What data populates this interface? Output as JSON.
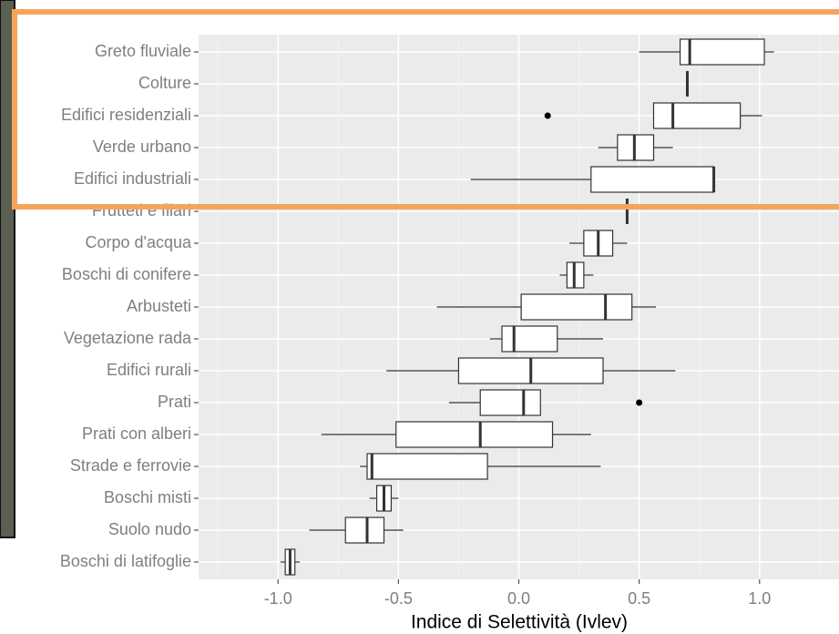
{
  "chart_data": {
    "type": "boxplot",
    "x_label": "Indice di Selettività (Ivlev)",
    "categories": [
      "Greto fluviale",
      "Colture",
      "Edifici residenziali",
      "Verde urbano",
      "Edifici industriali",
      "Frutteti e filari",
      "Corpo d'acqua",
      "Boschi di conifere",
      "Arbusteti",
      "Vegetazione rada",
      "Edifici rurali",
      "Prati",
      "Prati con alberi",
      "Strade e ferrovie",
      "Boschi misti",
      "Suolo nudo",
      "Boschi di latifoglie"
    ],
    "boxes": [
      {
        "low": 0.5,
        "q1": 0.67,
        "median": 0.71,
        "q3": 1.02,
        "high": 1.06
      },
      {
        "low": 0.7,
        "q1": 0.7,
        "median": 0.7,
        "q3": 0.7,
        "high": 0.7
      },
      {
        "low": 0.56,
        "q1": 0.56,
        "median": 0.64,
        "q3": 0.92,
        "high": 1.01,
        "outliers": [
          0.12
        ]
      },
      {
        "low": 0.33,
        "q1": 0.41,
        "median": 0.48,
        "q3": 0.56,
        "high": 0.64
      },
      {
        "low": -0.2,
        "q1": 0.3,
        "median": 0.81,
        "q3": 0.81,
        "high": 0.81
      },
      {
        "low": 0.45,
        "q1": 0.45,
        "median": 0.45,
        "q3": 0.45,
        "high": 0.45
      },
      {
        "low": 0.21,
        "q1": 0.27,
        "median": 0.33,
        "q3": 0.39,
        "high": 0.45
      },
      {
        "low": 0.17,
        "q1": 0.2,
        "median": 0.23,
        "q3": 0.27,
        "high": 0.31
      },
      {
        "low": -0.34,
        "q1": 0.01,
        "median": 0.36,
        "q3": 0.47,
        "high": 0.57
      },
      {
        "low": -0.12,
        "q1": -0.07,
        "median": -0.02,
        "q3": 0.16,
        "high": 0.35
      },
      {
        "low": -0.55,
        "q1": -0.25,
        "median": 0.05,
        "q3": 0.35,
        "high": 0.65
      },
      {
        "low": -0.29,
        "q1": -0.16,
        "median": 0.02,
        "q3": 0.09,
        "high": 0.09,
        "outliers": [
          0.5
        ]
      },
      {
        "low": -0.82,
        "q1": -0.51,
        "median": -0.16,
        "q3": 0.14,
        "high": 0.3
      },
      {
        "low": -0.66,
        "q1": -0.63,
        "median": -0.61,
        "q3": -0.13,
        "high": 0.34
      },
      {
        "low": -0.62,
        "q1": -0.59,
        "median": -0.56,
        "q3": -0.53,
        "high": -0.5
      },
      {
        "low": -0.87,
        "q1": -0.72,
        "median": -0.63,
        "q3": -0.56,
        "high": -0.48
      },
      {
        "low": -0.99,
        "q1": -0.97,
        "median": -0.95,
        "q3": -0.93,
        "high": -0.91
      }
    ],
    "xlim": [
      -1.33,
      1.33
    ],
    "xticks": [
      {
        "value": -1,
        "label": "-1.0"
      },
      -0.5,
      {
        "value": 0,
        "label": "0.0"
      },
      0.5,
      {
        "value": 1,
        "label": "1.0"
      }
    ],
    "x_minor_ticks": [
      -1.25,
      -0.75,
      -0.25,
      0.25,
      0.75,
      1.25
    ],
    "grid": true
  }
}
